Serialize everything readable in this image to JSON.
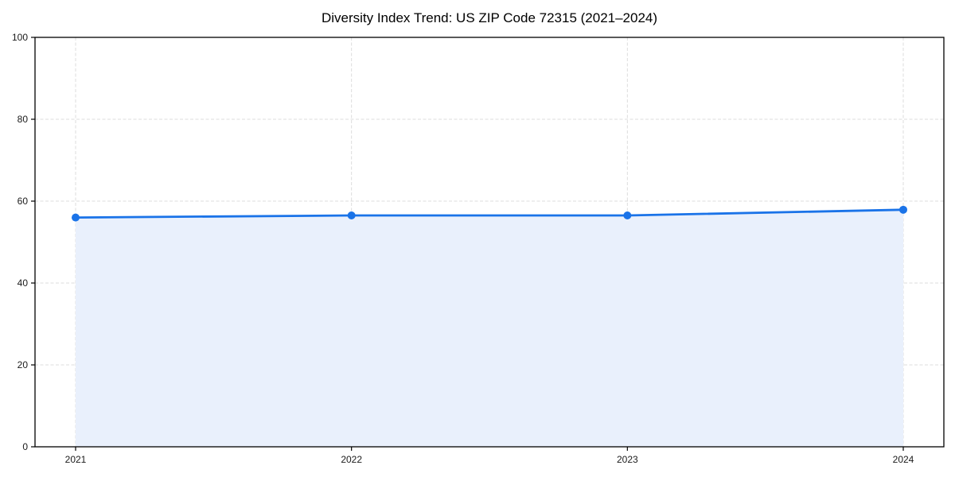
{
  "chart_data": {
    "type": "line",
    "title": "Diversity Index Trend: US ZIP Code 72315 (2021–2024)",
    "series_name": "Diversity Index",
    "categories": [
      "2021",
      "2022",
      "2023",
      "2024"
    ],
    "values": [
      56.0,
      56.5,
      56.5,
      57.9
    ],
    "xlabel": "",
    "ylabel": "",
    "ylim": [
      0,
      100
    ],
    "yticks": [
      0,
      20,
      40,
      60,
      80,
      100
    ],
    "grid": true,
    "grid_style": "dashed",
    "legend": false,
    "area_fill": true,
    "marker": "circle",
    "colors": {
      "line": "#1a73e8",
      "area": "#e9f0fc",
      "grid": "#dcdcdc",
      "axis": "#000000",
      "tick_text": "#1a1a1a",
      "background": "#ffffff"
    }
  }
}
